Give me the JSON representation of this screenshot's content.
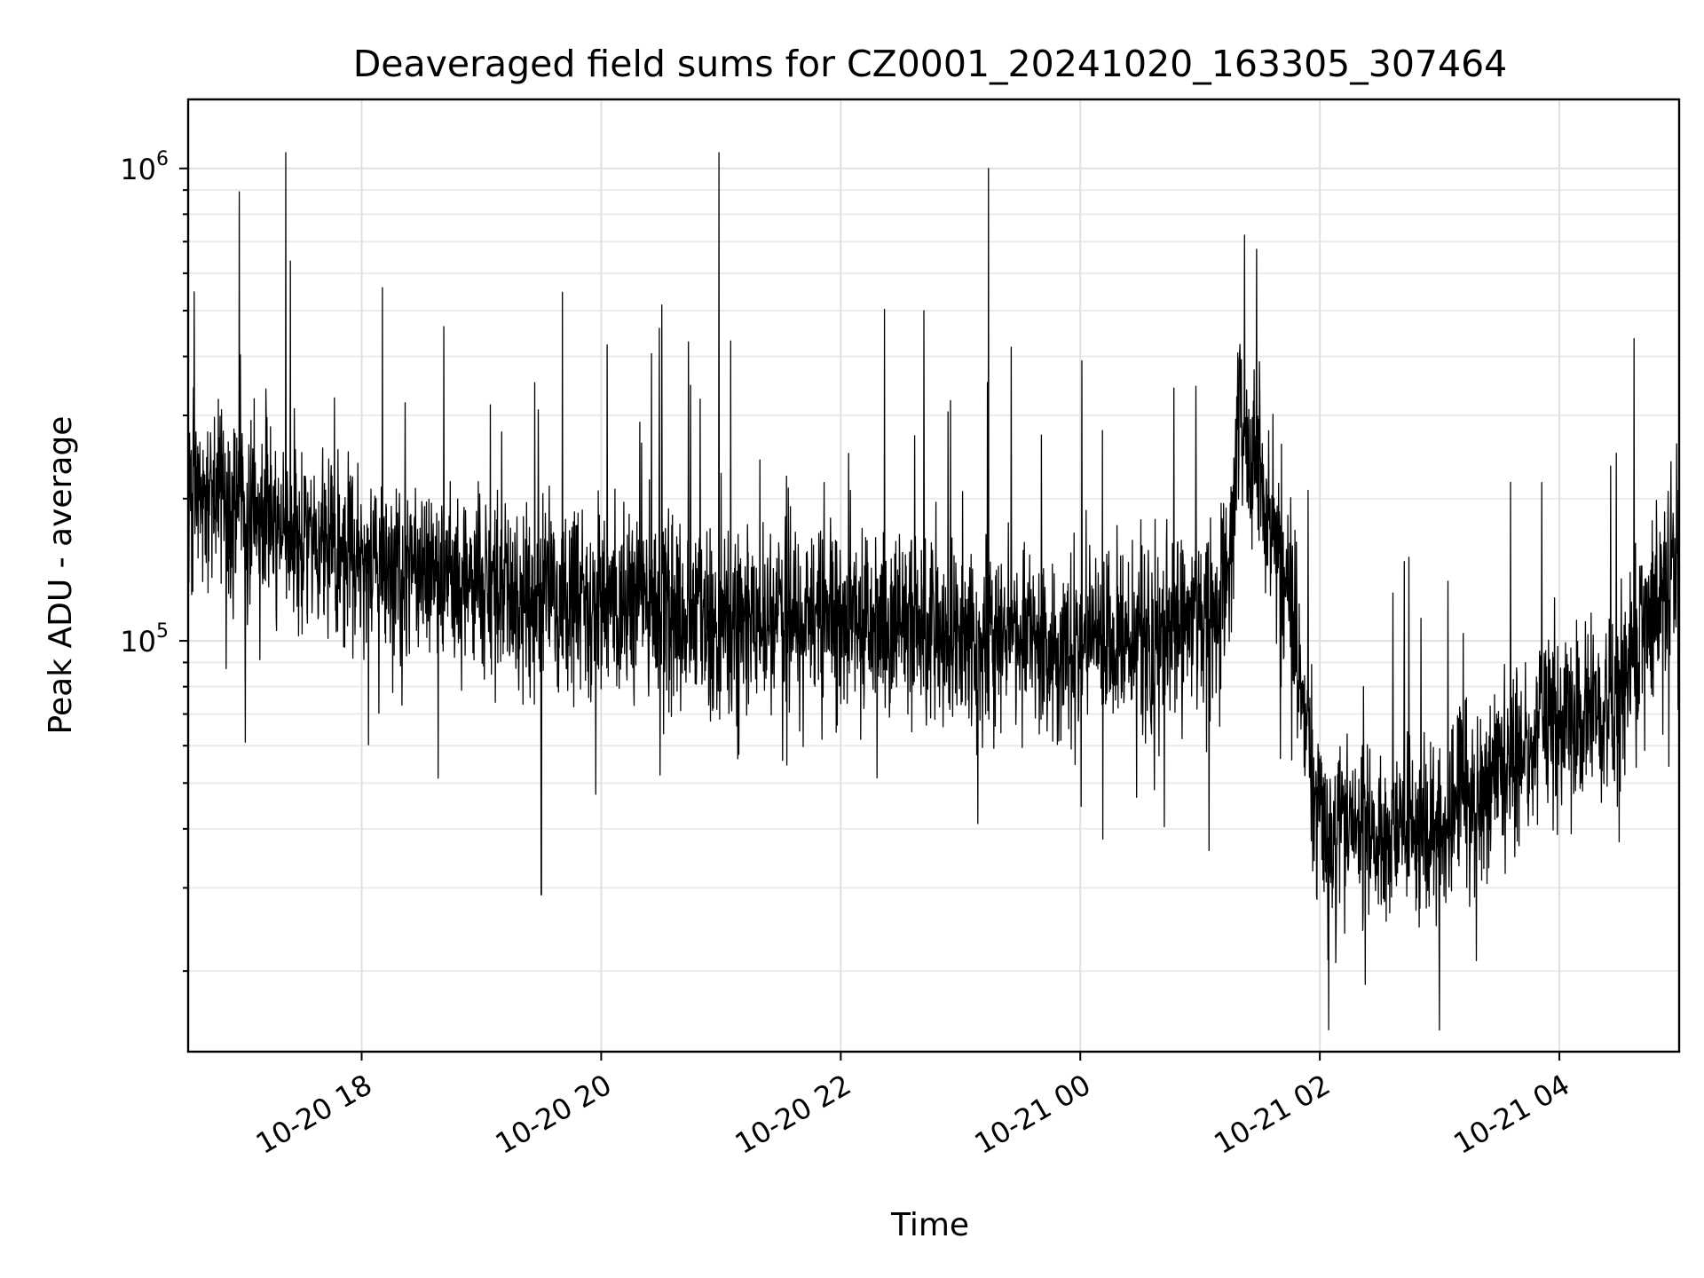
{
  "chart_data": {
    "type": "line",
    "title": "Deaveraged field sums for CZ0001_20241020_163305_307464",
    "xlabel": "Time",
    "ylabel": "Peak ADU - average",
    "x_range": [
      "2024-10-20 16:33:05",
      "2024-10-21 05:00:00"
    ],
    "y_scale": "log",
    "ylim": [
      13500,
      1400000
    ],
    "grid": true,
    "line_color": "#000000",
    "x_tick_labels": [
      {
        "t": "2024-10-20 18:00",
        "label": "10-20 18"
      },
      {
        "t": "2024-10-20 20:00",
        "label": "10-20 20"
      },
      {
        "t": "2024-10-20 22:00",
        "label": "10-20 22"
      },
      {
        "t": "2024-10-21 00:00",
        "label": "10-21 00"
      },
      {
        "t": "2024-10-21 02:00",
        "label": "10-21 02"
      },
      {
        "t": "2024-10-21 04:00",
        "label": "10-21 04"
      }
    ],
    "y_tick_labels": [
      {
        "value": 100000,
        "label": "10^5"
      },
      {
        "value": 1000000,
        "label": "10^6"
      }
    ],
    "series": [
      {
        "x": [
          "2024-10-20 16:33",
          "2024-10-20 17:00",
          "2024-10-20 17:30",
          "2024-10-20 18:00",
          "2024-10-20 18:30",
          "2024-10-20 19:00",
          "2024-10-20 19:30",
          "2024-10-20 20:00",
          "2024-10-20 20:30",
          "2024-10-20 21:00",
          "2024-10-20 21:30",
          "2024-10-20 22:00",
          "2024-10-20 22:30",
          "2024-10-20 23:00",
          "2024-10-20 23:30",
          "2024-10-21 00:00",
          "2024-10-21 00:30",
          "2024-10-21 01:00",
          "2024-10-21 01:10",
          "2024-10-21 01:15",
          "2024-10-21 01:20",
          "2024-10-21 01:30",
          "2024-10-21 01:45",
          "2024-10-21 02:00",
          "2024-10-21 02:30",
          "2024-10-21 03:00",
          "2024-10-21 03:30",
          "2024-10-21 04:00",
          "2024-10-21 04:30",
          "2024-10-21 05:00"
        ],
        "y": [
          200000,
          190000,
          170000,
          150000,
          135000,
          130000,
          125000,
          122000,
          118000,
          115000,
          112000,
          110000,
          106000,
          102000,
          100000,
          98000,
          100000,
          110000,
          115000,
          150000,
          300000,
          230000,
          120000,
          40000,
          38000,
          40000,
          55000,
          65000,
          75000,
          150000
        ]
      }
    ],
    "annotations": [
      {
        "x": "2024-10-20 17:22",
        "y": 1080000
      },
      {
        "x": "2024-10-20 20:59",
        "y": 1080000
      },
      {
        "x": "2024-10-20 23:14",
        "y": 1000000
      },
      {
        "x": "2024-10-20 19:30",
        "y": 29000
      },
      {
        "x": "2024-10-21 03:00",
        "y": 15000
      }
    ]
  }
}
